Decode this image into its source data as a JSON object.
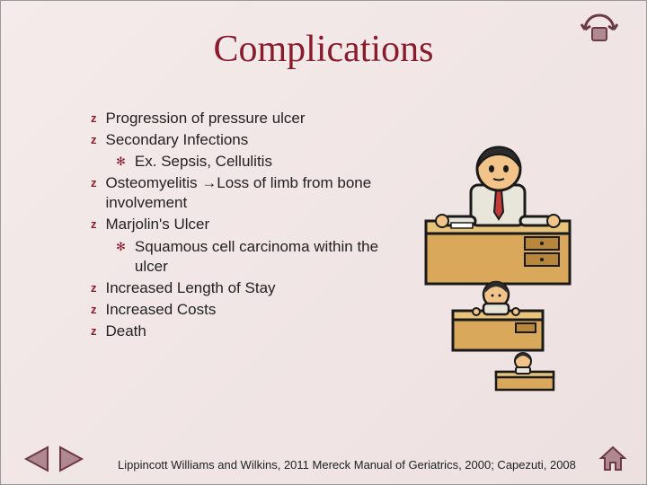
{
  "title": "Complications",
  "bullets": [
    {
      "level": 0,
      "text": "Progression of pressure ulcer"
    },
    {
      "level": 0,
      "text": "Secondary Infections"
    },
    {
      "level": 1,
      "text": "Ex. Sepsis, Cellulitis"
    },
    {
      "level": 0,
      "text": "Osteomyelitis →Loss of limb from bone involvement"
    },
    {
      "level": 0,
      "text": "Marjolin's Ulcer"
    },
    {
      "level": 1,
      "text": "Squamous cell carcinoma within the ulcer"
    },
    {
      "level": 0,
      "text": "Increased Length of Stay"
    },
    {
      "level": 0,
      "text": "Increased Costs"
    },
    {
      "level": 0,
      "text": "Death"
    }
  ],
  "citation": "Lippincott Williams and Wilkins, 2011 Mereck Manual of Geriatrics, 2000; Capezuti, 2008",
  "colors": {
    "title_color": "#8b1a2b",
    "bullet_color": "#8b1a2b",
    "text_color": "#222222",
    "bg_start": "#f5ebeb",
    "bg_end": "#ede0e0",
    "nav_fill": "#b08890",
    "nav_stroke": "#6b3a44"
  },
  "bullet_markers": {
    "level0": "z",
    "level1": "✻"
  },
  "clipart": {
    "description": "Cartoon of a man sitting at a large desk with progressively smaller people at smaller desks below",
    "colors": {
      "skin": "#f2c48a",
      "hair": "#2b2b2b",
      "shirt": "#e8e6da",
      "tie": "#c23a3a",
      "desk": "#d9a85a",
      "desk_shade": "#b8863a",
      "outline": "#1a1a1a"
    }
  }
}
